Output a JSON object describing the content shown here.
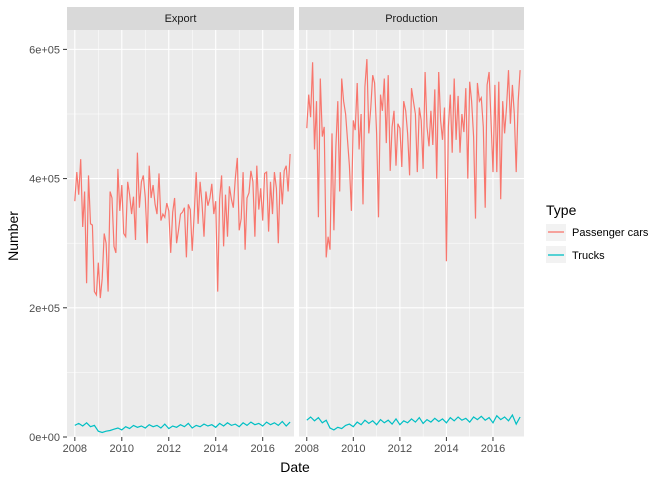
{
  "colors": {
    "panel_bg": "#EBEBEB",
    "strip_bg": "#D9D9D9",
    "grid_major": "#FFFFFF",
    "passenger_cars": "#F8766D",
    "trucks": "#00BFC4",
    "text": "#4D4D4D",
    "title_text": "#000000"
  },
  "chart_data": {
    "type": "line",
    "facets": [
      "Export",
      "Production"
    ],
    "xlabel": "Date",
    "ylabel": "Number",
    "x_range": [
      "2007-09",
      "2017-05"
    ],
    "x_tick_labels": [
      "2008",
      "2010",
      "2012",
      "2014",
      "2016"
    ],
    "ylim": [
      0,
      600000
    ],
    "y_tick_labels": [
      "0e+00",
      "2e+05",
      "4e+05",
      "6e+05"
    ],
    "y_tick_values": [
      0,
      200000,
      400000,
      600000
    ],
    "grid": true,
    "legend": {
      "title": "Type",
      "placement": "right",
      "entries": [
        "Passenger cars",
        "Trucks"
      ]
    },
    "series": [
      {
        "name": "Passenger cars",
        "facet": "Export",
        "x": [
          "2008-01",
          "2008-02",
          "2008-03",
          "2008-04",
          "2008-05",
          "2008-06",
          "2008-07",
          "2008-08",
          "2008-09",
          "2008-10",
          "2008-11",
          "2008-12",
          "2009-01",
          "2009-02",
          "2009-03",
          "2009-04",
          "2009-05",
          "2009-06",
          "2009-07",
          "2009-08",
          "2009-09",
          "2009-10",
          "2009-11",
          "2009-12",
          "2010-01",
          "2010-02",
          "2010-03",
          "2010-04",
          "2010-05",
          "2010-06",
          "2010-07",
          "2010-08",
          "2010-09",
          "2010-10",
          "2010-11",
          "2010-12",
          "2011-01",
          "2011-02",
          "2011-03",
          "2011-04",
          "2011-05",
          "2011-06",
          "2011-07",
          "2011-08",
          "2011-09",
          "2011-10",
          "2011-11",
          "2011-12",
          "2012-01",
          "2012-02",
          "2012-03",
          "2012-04",
          "2012-05",
          "2012-06",
          "2012-07",
          "2012-08",
          "2012-09",
          "2012-10",
          "2012-11",
          "2012-12",
          "2013-01",
          "2013-02",
          "2013-03",
          "2013-04",
          "2013-05",
          "2013-06",
          "2013-07",
          "2013-08",
          "2013-09",
          "2013-10",
          "2013-11",
          "2013-12",
          "2014-01",
          "2014-02",
          "2014-03",
          "2014-04",
          "2014-05",
          "2014-06",
          "2014-07",
          "2014-08",
          "2014-09",
          "2014-10",
          "2014-11",
          "2014-12",
          "2015-01",
          "2015-02",
          "2015-03",
          "2015-04",
          "2015-05",
          "2015-06",
          "2015-07",
          "2015-08",
          "2015-09",
          "2015-10",
          "2015-11",
          "2015-12",
          "2016-01",
          "2016-02",
          "2016-03",
          "2016-04",
          "2016-05",
          "2016-06",
          "2016-07",
          "2016-08",
          "2016-09",
          "2016-10",
          "2016-11",
          "2016-12",
          "2017-01",
          "2017-02",
          "2017-03"
        ],
        "values": [
          365000,
          410000,
          375000,
          430000,
          325000,
          380000,
          238000,
          405000,
          330000,
          328000,
          225000,
          220000,
          270000,
          215000,
          245000,
          315000,
          300000,
          225000,
          380000,
          370000,
          295000,
          285000,
          415000,
          350000,
          390000,
          315000,
          310000,
          395000,
          375000,
          345000,
          372000,
          305000,
          440000,
          355000,
          395000,
          405000,
          370000,
          300000,
          420000,
          370000,
          390000,
          360000,
          345000,
          408000,
          335000,
          345000,
          340000,
          362000,
          350000,
          285000,
          348000,
          370000,
          300000,
          320000,
          345000,
          348000,
          355000,
          278000,
          360000,
          352000,
          288000,
          345000,
          410000,
          330000,
          395000,
          362000,
          310000,
          380000,
          358000,
          370000,
          392000,
          345000,
          365000,
          225000,
          368000,
          405000,
          295000,
          375000,
          310000,
          388000,
          368000,
          355000,
          400000,
          432000,
          320000,
          338000,
          410000,
          290000,
          370000,
          378000,
          412000,
          395000,
          310000,
          420000,
          352000,
          385000,
          335000,
          408000,
          410000,
          318000,
          395000,
          345000,
          410000,
          385000,
          300000,
          410000,
          360000,
          412000,
          420000,
          380000,
          438000
        ],
        "note_last_value_only": false
      },
      {
        "name": "Trucks",
        "facet": "Export",
        "x": [
          "2008-01",
          "2008-03",
          "2008-05",
          "2008-07",
          "2008-09",
          "2008-11",
          "2009-01",
          "2009-03",
          "2009-05",
          "2009-07",
          "2009-09",
          "2009-11",
          "2010-01",
          "2010-03",
          "2010-05",
          "2010-07",
          "2010-09",
          "2010-11",
          "2011-01",
          "2011-03",
          "2011-05",
          "2011-07",
          "2011-09",
          "2011-11",
          "2012-01",
          "2012-03",
          "2012-05",
          "2012-07",
          "2012-09",
          "2012-11",
          "2013-01",
          "2013-03",
          "2013-05",
          "2013-07",
          "2013-09",
          "2013-11",
          "2014-01",
          "2014-03",
          "2014-05",
          "2014-07",
          "2014-09",
          "2014-11",
          "2015-01",
          "2015-03",
          "2015-05",
          "2015-07",
          "2015-09",
          "2015-11",
          "2016-01",
          "2016-03",
          "2016-05",
          "2016-07",
          "2016-09",
          "2016-11",
          "2017-01",
          "2017-03"
        ],
        "values": [
          18000,
          21000,
          17000,
          22000,
          16000,
          18000,
          9000,
          7000,
          9000,
          10000,
          12000,
          14000,
          11000,
          16000,
          13000,
          18000,
          15000,
          17000,
          14000,
          19000,
          16000,
          18000,
          14000,
          20000,
          13000,
          17000,
          15000,
          19000,
          16000,
          21000,
          14000,
          18000,
          16000,
          20000,
          17000,
          19000,
          15000,
          21000,
          17000,
          22000,
          18000,
          20000,
          16000,
          22000,
          18000,
          23000,
          19000,
          21000,
          17000,
          23000,
          19000,
          22000,
          18000,
          24000,
          17000,
          23000
        ]
      },
      {
        "name": "Passenger cars",
        "facet": "Production",
        "x": [
          "2008-01",
          "2008-02",
          "2008-03",
          "2008-04",
          "2008-05",
          "2008-06",
          "2008-07",
          "2008-08",
          "2008-09",
          "2008-10",
          "2008-11",
          "2008-12",
          "2009-01",
          "2009-02",
          "2009-03",
          "2009-04",
          "2009-05",
          "2009-06",
          "2009-07",
          "2009-08",
          "2009-09",
          "2009-10",
          "2009-11",
          "2009-12",
          "2010-01",
          "2010-02",
          "2010-03",
          "2010-04",
          "2010-05",
          "2010-06",
          "2010-07",
          "2010-08",
          "2010-09",
          "2010-10",
          "2010-11",
          "2010-12",
          "2011-01",
          "2011-02",
          "2011-03",
          "2011-04",
          "2011-05",
          "2011-06",
          "2011-07",
          "2011-08",
          "2011-09",
          "2011-10",
          "2011-11",
          "2011-12",
          "2012-01",
          "2012-02",
          "2012-03",
          "2012-04",
          "2012-05",
          "2012-06",
          "2012-07",
          "2012-08",
          "2012-09",
          "2012-10",
          "2012-11",
          "2012-12",
          "2013-01",
          "2013-02",
          "2013-03",
          "2013-04",
          "2013-05",
          "2013-06",
          "2013-07",
          "2013-08",
          "2013-09",
          "2013-10",
          "2013-11",
          "2013-12",
          "2014-01",
          "2014-02",
          "2014-03",
          "2014-04",
          "2014-05",
          "2014-06",
          "2014-07",
          "2014-08",
          "2014-09",
          "2014-10",
          "2014-11",
          "2014-12",
          "2015-01",
          "2015-02",
          "2015-03",
          "2015-04",
          "2015-05",
          "2015-06",
          "2015-07",
          "2015-08",
          "2015-09",
          "2015-10",
          "2015-11",
          "2015-12",
          "2016-01",
          "2016-02",
          "2016-03",
          "2016-04",
          "2016-05",
          "2016-06",
          "2016-07",
          "2016-08",
          "2016-09",
          "2016-10",
          "2016-11",
          "2016-12",
          "2017-01",
          "2017-02",
          "2017-03"
        ],
        "values": [
          478000,
          530000,
          495000,
          580000,
          445000,
          520000,
          340000,
          555000,
          465000,
          480000,
          278000,
          310000,
          290000,
          470000,
          320000,
          450000,
          520000,
          380000,
          555000,
          520000,
          500000,
          460000,
          420000,
          350000,
          490000,
          475000,
          548000,
          445000,
          500000,
          360000,
          542000,
          585000,
          470000,
          510000,
          560000,
          548000,
          470000,
          340000,
          530000,
          505000,
          555000,
          455000,
          560000,
          412000,
          480000,
          505000,
          420000,
          485000,
          478000,
          418000,
          520000,
          505000,
          470000,
          405000,
          540000,
          520000,
          500000,
          410000,
          510000,
          490000,
          415000,
          565000,
          480000,
          450000,
          505000,
          452000,
          538000,
          400000,
          565000,
          490000,
          460000,
          510000,
          272000,
          480000,
          530000,
          440000,
          555000,
          460000,
          528000,
          440000,
          500000,
          472000,
          540000,
          400000,
          550000,
          520000,
          465000,
          338000,
          548000,
          520000,
          525000,
          480000,
          355000,
          545000,
          565000,
          490000,
          410000,
          545000,
          410000,
          550000,
          368000,
          520000,
          470000,
          510000,
          568000,
          485000,
          545000,
          500000,
          410000,
          520000,
          568000
        ]
      },
      {
        "name": "Trucks",
        "facet": "Production",
        "x": [
          "2008-01",
          "2008-03",
          "2008-05",
          "2008-07",
          "2008-09",
          "2008-11",
          "2009-01",
          "2009-03",
          "2009-05",
          "2009-07",
          "2009-09",
          "2009-11",
          "2010-01",
          "2010-03",
          "2010-05",
          "2010-07",
          "2010-09",
          "2010-11",
          "2011-01",
          "2011-03",
          "2011-05",
          "2011-07",
          "2011-09",
          "2011-11",
          "2012-01",
          "2012-03",
          "2012-05",
          "2012-07",
          "2012-09",
          "2012-11",
          "2013-01",
          "2013-03",
          "2013-05",
          "2013-07",
          "2013-09",
          "2013-11",
          "2014-01",
          "2014-03",
          "2014-05",
          "2014-07",
          "2014-09",
          "2014-11",
          "2015-01",
          "2015-03",
          "2015-05",
          "2015-07",
          "2015-09",
          "2015-11",
          "2016-01",
          "2016-03",
          "2016-05",
          "2016-07",
          "2016-09",
          "2016-11",
          "2017-01",
          "2017-03"
        ],
        "values": [
          26000,
          31000,
          25000,
          30000,
          22000,
          26000,
          14000,
          11000,
          15000,
          13000,
          18000,
          20000,
          16000,
          23000,
          19000,
          26000,
          21000,
          25000,
          19000,
          27000,
          22000,
          26000,
          20000,
          28000,
          19000,
          25000,
          22000,
          28000,
          23000,
          30000,
          21000,
          27000,
          23000,
          29000,
          24000,
          28000,
          22000,
          30000,
          25000,
          31000,
          26000,
          29000,
          23000,
          31000,
          27000,
          32000,
          26000,
          30000,
          22000,
          33000,
          27000,
          31000,
          25000,
          34000,
          20000,
          31000
        ]
      }
    ]
  }
}
